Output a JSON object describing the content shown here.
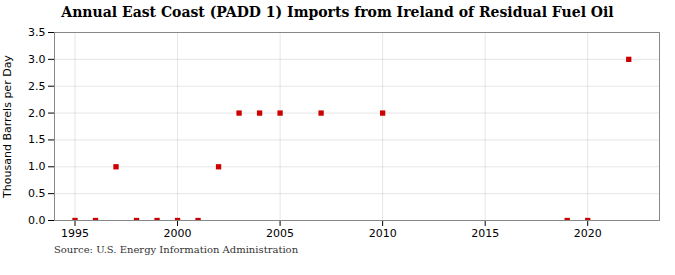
{
  "chart_data": {
    "type": "scatter",
    "title": "Annual East Coast (PADD 1) Imports from Ireland of Residual Fuel Oil",
    "ylabel": "Thousand Barrels per Day",
    "source": "Source: U.S. Energy Information Administration",
    "x": [
      1995,
      1996,
      1997,
      1998,
      1999,
      2000,
      2001,
      2002,
      2003,
      2004,
      2005,
      2007,
      2010,
      2019,
      2020,
      2022
    ],
    "values": [
      0,
      0,
      1,
      0,
      0,
      0,
      0,
      1,
      2,
      2,
      2,
      2,
      2,
      0,
      0,
      3
    ],
    "color": "#cc0000",
    "marker": "square",
    "xlim": [
      1994,
      2023.5
    ],
    "ylim": [
      0,
      3.5
    ],
    "xticks": [
      1995,
      2000,
      2005,
      2010,
      2015,
      2020
    ],
    "yticks": [
      {
        "value": 0.0,
        "label": "0.0"
      },
      {
        "value": 0.5,
        "label": "0.5"
      },
      {
        "value": 1.0,
        "label": "1.0"
      },
      {
        "value": 1.5,
        "label": "1.5"
      },
      {
        "value": 2.0,
        "label": "2.0"
      },
      {
        "value": 2.5,
        "label": "2.5"
      },
      {
        "value": 3.0,
        "label": "3.0"
      },
      {
        "value": 3.5,
        "label": "3.5"
      }
    ],
    "grid": true
  }
}
